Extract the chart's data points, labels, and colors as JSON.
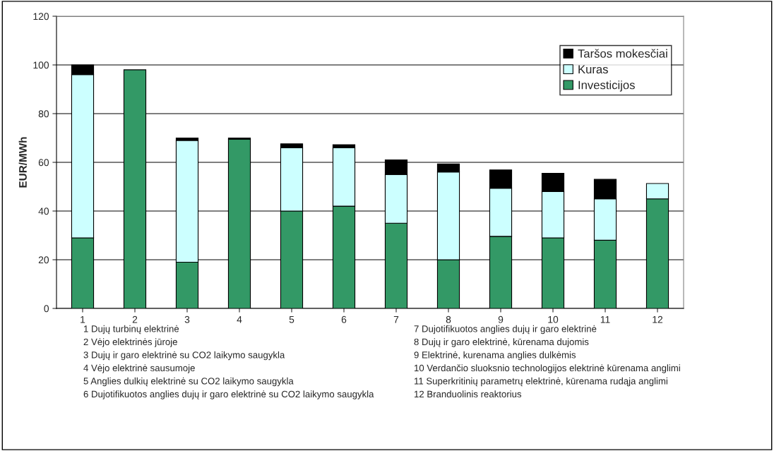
{
  "chart_data": {
    "type": "bar",
    "stacked": true,
    "ylabel": "EUR/MWh",
    "categories": [
      "1",
      "2",
      "3",
      "4",
      "5",
      "6",
      "7",
      "8",
      "9",
      "10",
      "11",
      "12"
    ],
    "series": [
      {
        "name": "Investicijos",
        "color": "#339966",
        "values": [
          29,
          98,
          19,
          69.5,
          40,
          42,
          35,
          20,
          29.6,
          29,
          28,
          45
        ]
      },
      {
        "name": "Kuras",
        "color": "#ccffff",
        "values": [
          67,
          0,
          50,
          0,
          26,
          24,
          20,
          36,
          19.8,
          19,
          17,
          6.3
        ]
      },
      {
        "name": "Taršos mokesčiai",
        "color": "#000000",
        "values": [
          4,
          0,
          1,
          0.5,
          1.6,
          1.2,
          6,
          3.3,
          7.5,
          7.5,
          8,
          0
        ]
      }
    ],
    "ylim": [
      0,
      120
    ],
    "yticks": [
      0,
      20,
      40,
      60,
      80,
      100,
      120
    ],
    "grid": "y",
    "legend": "top right",
    "annotations": [
      "1 Dujų turbinų elektrinė",
      "2 Vėjo elektrinės jūroje",
      "3 Dujų ir garo elektrinė su CO2 laikymo saugykla",
      "4 Vėjo elektrinė sausumoje",
      "5 Anglies dulkių elektrinė su CO2 laikymo saugykla",
      "6 Dujotifikuotos anglies dujų ir garo elektrinė su CO2 laikymo saugykla",
      "7 Dujotifikuotos anglies dujų ir garo elektrinė",
      "8 Dujų ir garo elektrinė, kūrenama dujomis",
      "9 Elektrinė, kurenama anglies dulkėmis",
      "10 Verdančio sluoksnio technologijos elektrinė kūrenama anglimi",
      "11 Superkritinių parametrų elektrinė, kūrenama rudąja anglimi",
      "12 Branduolinis reaktorius"
    ]
  }
}
